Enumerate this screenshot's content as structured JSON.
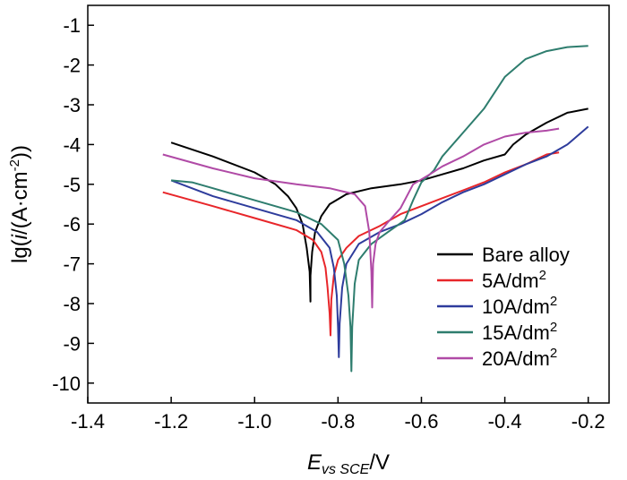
{
  "chart_data": {
    "type": "line",
    "title": "",
    "xlabel": {
      "main": "E",
      "sub": "vs SCE",
      "unit": "/V"
    },
    "ylabel": {
      "prefix": "lg(",
      "italic": "i",
      "mid": "/(A·cm",
      "sup": "-2",
      "suffix": "))"
    },
    "xlim": [
      -1.4,
      -0.15
    ],
    "ylim": [
      -10.5,
      -0.5
    ],
    "xticks": [
      -1.4,
      -1.2,
      -1.0,
      -0.8,
      -0.6,
      -0.4,
      -0.2
    ],
    "xtick_labels": [
      "-1.4",
      "-1.2",
      "-1.0",
      "-0.8",
      "-0.6",
      "-0.4",
      "-0.2"
    ],
    "yticks": [
      -1,
      -2,
      -3,
      -4,
      -5,
      -6,
      -7,
      -8,
      -9,
      -10
    ],
    "ytick_labels": [
      "-1",
      "-2",
      "-3",
      "-4",
      "-5",
      "-6",
      "-7",
      "-8",
      "-9",
      "-10"
    ],
    "grid": false,
    "legend_position": "bottom-right",
    "series": [
      {
        "name": "Bare alloy",
        "name_main": "Bare alloy",
        "name_sup": "",
        "color": "#000000",
        "points": [
          [
            -1.2,
            -3.95
          ],
          [
            -1.1,
            -4.3
          ],
          [
            -1.0,
            -4.7
          ],
          [
            -0.95,
            -5.0
          ],
          [
            -0.92,
            -5.3
          ],
          [
            -0.9,
            -5.6
          ],
          [
            -0.885,
            -6.0
          ],
          [
            -0.875,
            -6.6
          ],
          [
            -0.868,
            -7.2
          ],
          [
            -0.866,
            -7.95
          ],
          [
            -0.866,
            -7.3
          ],
          [
            -0.862,
            -6.7
          ],
          [
            -0.855,
            -6.2
          ],
          [
            -0.84,
            -5.8
          ],
          [
            -0.82,
            -5.5
          ],
          [
            -0.78,
            -5.25
          ],
          [
            -0.72,
            -5.1
          ],
          [
            -0.65,
            -5.0
          ],
          [
            -0.6,
            -4.9
          ],
          [
            -0.55,
            -4.75
          ],
          [
            -0.5,
            -4.6
          ],
          [
            -0.45,
            -4.4
          ],
          [
            -0.4,
            -4.25
          ],
          [
            -0.38,
            -4.0
          ],
          [
            -0.35,
            -3.75
          ],
          [
            -0.3,
            -3.45
          ],
          [
            -0.25,
            -3.2
          ],
          [
            -0.2,
            -3.1
          ]
        ]
      },
      {
        "name": "5A/dm2",
        "name_main": "5A/dm",
        "name_sup": "2",
        "color": "#e8262a",
        "points": [
          [
            -1.22,
            -5.2
          ],
          [
            -1.1,
            -5.55
          ],
          [
            -1.0,
            -5.85
          ],
          [
            -0.9,
            -6.15
          ],
          [
            -0.86,
            -6.4
          ],
          [
            -0.84,
            -6.7
          ],
          [
            -0.83,
            -7.1
          ],
          [
            -0.825,
            -7.6
          ],
          [
            -0.82,
            -8.25
          ],
          [
            -0.818,
            -8.8
          ],
          [
            -0.816,
            -7.9
          ],
          [
            -0.81,
            -7.3
          ],
          [
            -0.8,
            -6.9
          ],
          [
            -0.78,
            -6.6
          ],
          [
            -0.75,
            -6.3
          ],
          [
            -0.7,
            -6.05
          ],
          [
            -0.65,
            -5.75
          ],
          [
            -0.6,
            -5.55
          ],
          [
            -0.55,
            -5.35
          ],
          [
            -0.5,
            -5.15
          ],
          [
            -0.45,
            -4.95
          ],
          [
            -0.4,
            -4.7
          ],
          [
            -0.35,
            -4.5
          ],
          [
            -0.3,
            -4.25
          ],
          [
            -0.27,
            -4.2
          ]
        ]
      },
      {
        "name": "10A/dm2",
        "name_main": "10A/dm",
        "name_sup": "2",
        "color": "#2e3c9c",
        "points": [
          [
            -1.2,
            -4.9
          ],
          [
            -1.1,
            -5.3
          ],
          [
            -1.0,
            -5.6
          ],
          [
            -0.9,
            -5.9
          ],
          [
            -0.85,
            -6.2
          ],
          [
            -0.82,
            -6.6
          ],
          [
            -0.81,
            -7.1
          ],
          [
            -0.803,
            -7.8
          ],
          [
            -0.8,
            -8.6
          ],
          [
            -0.798,
            -9.35
          ],
          [
            -0.796,
            -8.5
          ],
          [
            -0.79,
            -7.6
          ],
          [
            -0.78,
            -7.0
          ],
          [
            -0.75,
            -6.5
          ],
          [
            -0.7,
            -6.2
          ],
          [
            -0.65,
            -6.0
          ],
          [
            -0.6,
            -5.75
          ],
          [
            -0.55,
            -5.45
          ],
          [
            -0.5,
            -5.2
          ],
          [
            -0.45,
            -5.0
          ],
          [
            -0.4,
            -4.75
          ],
          [
            -0.35,
            -4.5
          ],
          [
            -0.3,
            -4.3
          ],
          [
            -0.25,
            -4.0
          ],
          [
            -0.2,
            -3.55
          ]
        ]
      },
      {
        "name": "15A/dm2",
        "name_main": "15A/dm",
        "name_sup": "2",
        "color": "#2e7d6e",
        "points": [
          [
            -1.2,
            -4.9
          ],
          [
            -1.15,
            -4.95
          ],
          [
            -1.1,
            -5.1
          ],
          [
            -1.0,
            -5.4
          ],
          [
            -0.9,
            -5.7
          ],
          [
            -0.84,
            -6.0
          ],
          [
            -0.8,
            -6.4
          ],
          [
            -0.785,
            -7.0
          ],
          [
            -0.775,
            -7.8
          ],
          [
            -0.77,
            -8.6
          ],
          [
            -0.768,
            -9.7
          ],
          [
            -0.766,
            -8.6
          ],
          [
            -0.76,
            -7.5
          ],
          [
            -0.75,
            -6.9
          ],
          [
            -0.72,
            -6.5
          ],
          [
            -0.68,
            -6.2
          ],
          [
            -0.64,
            -5.9
          ],
          [
            -0.62,
            -5.4
          ],
          [
            -0.6,
            -4.95
          ],
          [
            -0.57,
            -4.65
          ],
          [
            -0.55,
            -4.3
          ],
          [
            -0.5,
            -3.7
          ],
          [
            -0.45,
            -3.1
          ],
          [
            -0.4,
            -2.3
          ],
          [
            -0.35,
            -1.85
          ],
          [
            -0.3,
            -1.65
          ],
          [
            -0.25,
            -1.55
          ],
          [
            -0.2,
            -1.52
          ]
        ]
      },
      {
        "name": "20A/dm2",
        "name_main": "20A/dm",
        "name_sup": "2",
        "color": "#b04aa6",
        "points": [
          [
            -1.22,
            -4.25
          ],
          [
            -1.1,
            -4.6
          ],
          [
            -1.0,
            -4.85
          ],
          [
            -0.9,
            -5.0
          ],
          [
            -0.82,
            -5.1
          ],
          [
            -0.76,
            -5.25
          ],
          [
            -0.735,
            -5.55
          ],
          [
            -0.725,
            -6.2
          ],
          [
            -0.72,
            -7.2
          ],
          [
            -0.718,
            -8.1
          ],
          [
            -0.716,
            -7.0
          ],
          [
            -0.71,
            -6.5
          ],
          [
            -0.7,
            -6.2
          ],
          [
            -0.68,
            -5.95
          ],
          [
            -0.65,
            -5.6
          ],
          [
            -0.62,
            -5.0
          ],
          [
            -0.58,
            -4.75
          ],
          [
            -0.55,
            -4.55
          ],
          [
            -0.5,
            -4.3
          ],
          [
            -0.45,
            -4.0
          ],
          [
            -0.4,
            -3.8
          ],
          [
            -0.35,
            -3.7
          ],
          [
            -0.3,
            -3.65
          ],
          [
            -0.27,
            -3.6
          ]
        ]
      }
    ]
  }
}
